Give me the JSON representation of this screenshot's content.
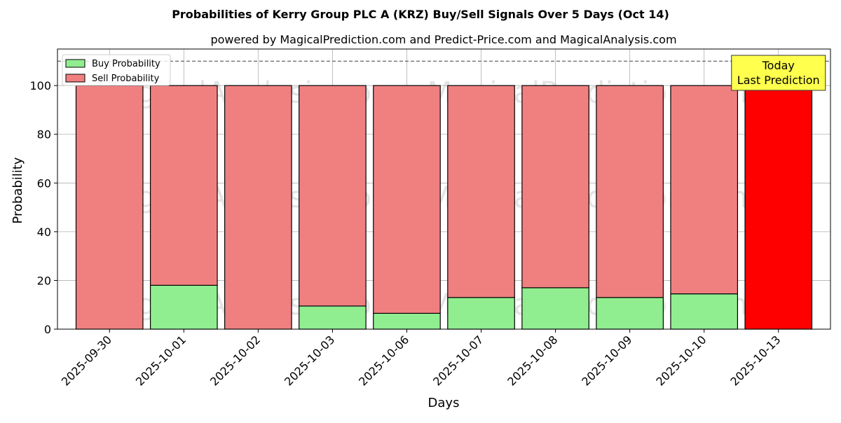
{
  "chart_data": {
    "type": "bar",
    "stacked": true,
    "title": "Probabilities of Kerry Group PLC A (KRZ) Buy/Sell Signals Over 5 Days (Oct 14)",
    "subtitle": "powered by MagicalPrediction.com and Predict-Price.com and MagicalAnalysis.com",
    "xlabel": "Days",
    "ylabel": "Probability",
    "ylim": [
      0,
      115
    ],
    "yticks": [
      0,
      20,
      40,
      60,
      80,
      100
    ],
    "reference_line": 110,
    "grid": true,
    "legend_position": "top-left",
    "categories": [
      "2025-09-30",
      "2025-10-01",
      "2025-10-02",
      "2025-10-03",
      "2025-10-06",
      "2025-10-07",
      "2025-10-08",
      "2025-10-09",
      "2025-10-10",
      "2025-10-13"
    ],
    "series": [
      {
        "name": "Buy Probability",
        "color": "#90ee90",
        "values": [
          0,
          18,
          0,
          9.5,
          6.5,
          13,
          17,
          13,
          14.5,
          0
        ]
      },
      {
        "name": "Sell Probability",
        "color": "#f08080",
        "values": [
          100,
          82,
          100,
          90.5,
          93.5,
          87,
          83,
          87,
          85.5,
          100
        ]
      }
    ],
    "highlight": {
      "index": 9,
      "color": "#ff0000"
    },
    "annotation": {
      "lines": [
        "Today",
        "Last Prediction"
      ],
      "color": "#ffff4d"
    },
    "watermarks": [
      "MagicalAnalysis.com",
      "MagicalPrediction.com"
    ]
  }
}
